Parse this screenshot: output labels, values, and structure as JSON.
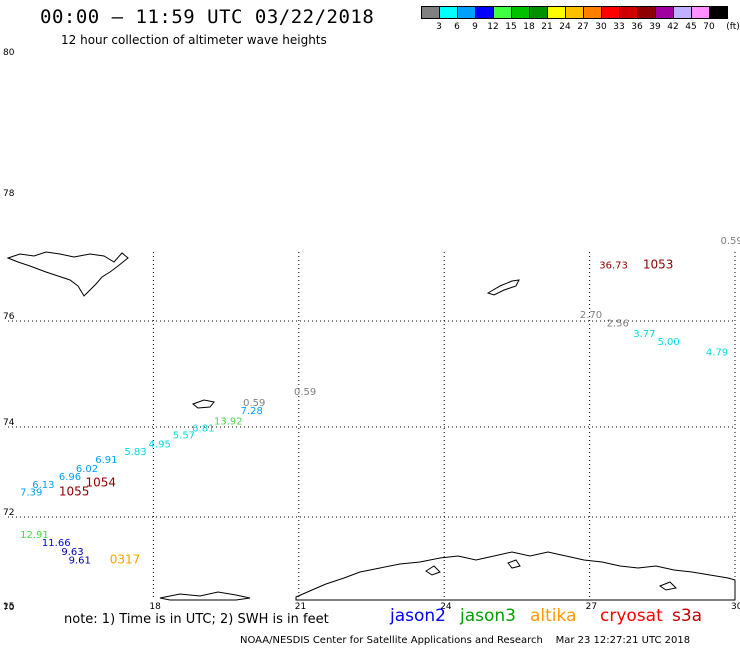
{
  "title": "00:00 – 11:59 UTC 03/22/2018",
  "subtitle": "12 hour collection of altimeter wave heights",
  "legend": {
    "colors": [
      "#808080",
      "#00ffff",
      "#00a0ff",
      "#0000ff",
      "#40ff40",
      "#00c000",
      "#009000",
      "#ffff00",
      "#ffc000",
      "#ff8000",
      "#ff0000",
      "#d00000",
      "#900000",
      "#a000a0",
      "#c0b0ff",
      "#ff90ff",
      "#000000"
    ],
    "labels": [
      "3",
      "6",
      "9",
      "12",
      "15",
      "18",
      "21",
      "24",
      "27",
      "30",
      "33",
      "36",
      "39",
      "42",
      "45",
      "70"
    ],
    "unit": "(ft)"
  },
  "map": {
    "lon_range": [
      15,
      30
    ],
    "lat_range": [
      70,
      80
    ],
    "lon_ticks": [
      "18",
      "21",
      "24",
      "27",
      "30"
    ],
    "lon_min_label": "15",
    "lat_ticks": [
      "72",
      "74",
      "76",
      "78",
      "80"
    ],
    "lat_min_label": "70"
  },
  "observations": [
    {
      "text": "0.59",
      "color": "#808080",
      "lon": 29.7,
      "lat": 77.25
    },
    {
      "text": "36.73",
      "color": "#900000",
      "lon": 27.2,
      "lat": 76.85
    },
    {
      "text": "1053",
      "color": "#900000",
      "lon": 28.1,
      "lat": 76.85,
      "pass": true
    },
    {
      "text": "2.70",
      "color": "#808080",
      "lon": 26.8,
      "lat": 76.05
    },
    {
      "text": "2.56",
      "color": "#808080",
      "lon": 27.35,
      "lat": 75.9
    },
    {
      "text": "3.77",
      "color": "#00dddd",
      "lon": 27.9,
      "lat": 75.7
    },
    {
      "text": "5.00",
      "color": "#00dddd",
      "lon": 28.4,
      "lat": 75.55
    },
    {
      "text": "4.79",
      "color": "#00dddd",
      "lon": 29.4,
      "lat": 75.35
    },
    {
      "text": "0.59",
      "color": "#808080",
      "lon": 20.9,
      "lat": 74.6
    },
    {
      "text": "0.59",
      "color": "#808080",
      "lon": 19.85,
      "lat": 74.4
    },
    {
      "text": "7.28",
      "color": "#00a0ff",
      "lon": 19.8,
      "lat": 74.25
    },
    {
      "text": "13.92",
      "color": "#40dd40",
      "lon": 19.25,
      "lat": 74.05
    },
    {
      "text": "6.81",
      "color": "#00dddd",
      "lon": 18.8,
      "lat": 73.9
    },
    {
      "text": "5.57",
      "color": "#00dddd",
      "lon": 18.4,
      "lat": 73.75
    },
    {
      "text": "4.95",
      "color": "#00dddd",
      "lon": 17.9,
      "lat": 73.55
    },
    {
      "text": "5.83",
      "color": "#00dddd",
      "lon": 17.4,
      "lat": 73.38
    },
    {
      "text": "6.91",
      "color": "#00a0ff",
      "lon": 16.8,
      "lat": 73.2
    },
    {
      "text": "6.02",
      "color": "#00a0ff",
      "lon": 16.4,
      "lat": 73.0
    },
    {
      "text": "6.96",
      "color": "#00a0ff",
      "lon": 16.05,
      "lat": 72.82
    },
    {
      "text": "1054",
      "color": "#900000",
      "lon": 16.6,
      "lat": 72.68,
      "pass": true
    },
    {
      "text": "6.13",
      "color": "#00a0ff",
      "lon": 15.5,
      "lat": 72.64
    },
    {
      "text": "7.39",
      "color": "#00a0ff",
      "lon": 15.25,
      "lat": 72.48
    },
    {
      "text": "1055",
      "color": "#900000",
      "lon": 16.05,
      "lat": 72.48,
      "pass": true
    },
    {
      "text": "12.91",
      "color": "#40dd40",
      "lon": 15.25,
      "lat": 71.5
    },
    {
      "text": "11.66",
      "color": "#0000ff",
      "lon": 15.7,
      "lat": 71.3
    },
    {
      "text": "9.63",
      "color": "#0000aa",
      "lon": 16.1,
      "lat": 71.08
    },
    {
      "text": "9.61",
      "color": "#0000aa",
      "lon": 16.25,
      "lat": 70.88
    },
    {
      "text": "0317",
      "color": "#ffa000",
      "lon": 17.1,
      "lat": 70.88,
      "pass": true
    }
  ],
  "note": "note: 1) Time is in UTC; 2) SWH is in feet",
  "satellites": [
    {
      "name": "jason2",
      "color": "#0000ff"
    },
    {
      "name": "jason3",
      "color": "#00a000"
    },
    {
      "name": "altika",
      "color": "#ff9900"
    },
    {
      "name": "cryosat",
      "color": "#ff0000"
    },
    {
      "name": "s3a",
      "color": "#c00000"
    }
  ],
  "footer_left": "NOAA/NESDIS Center for Satellite Applications and Research",
  "footer_right": "Mar 23 12:27:21 UTC 2018"
}
